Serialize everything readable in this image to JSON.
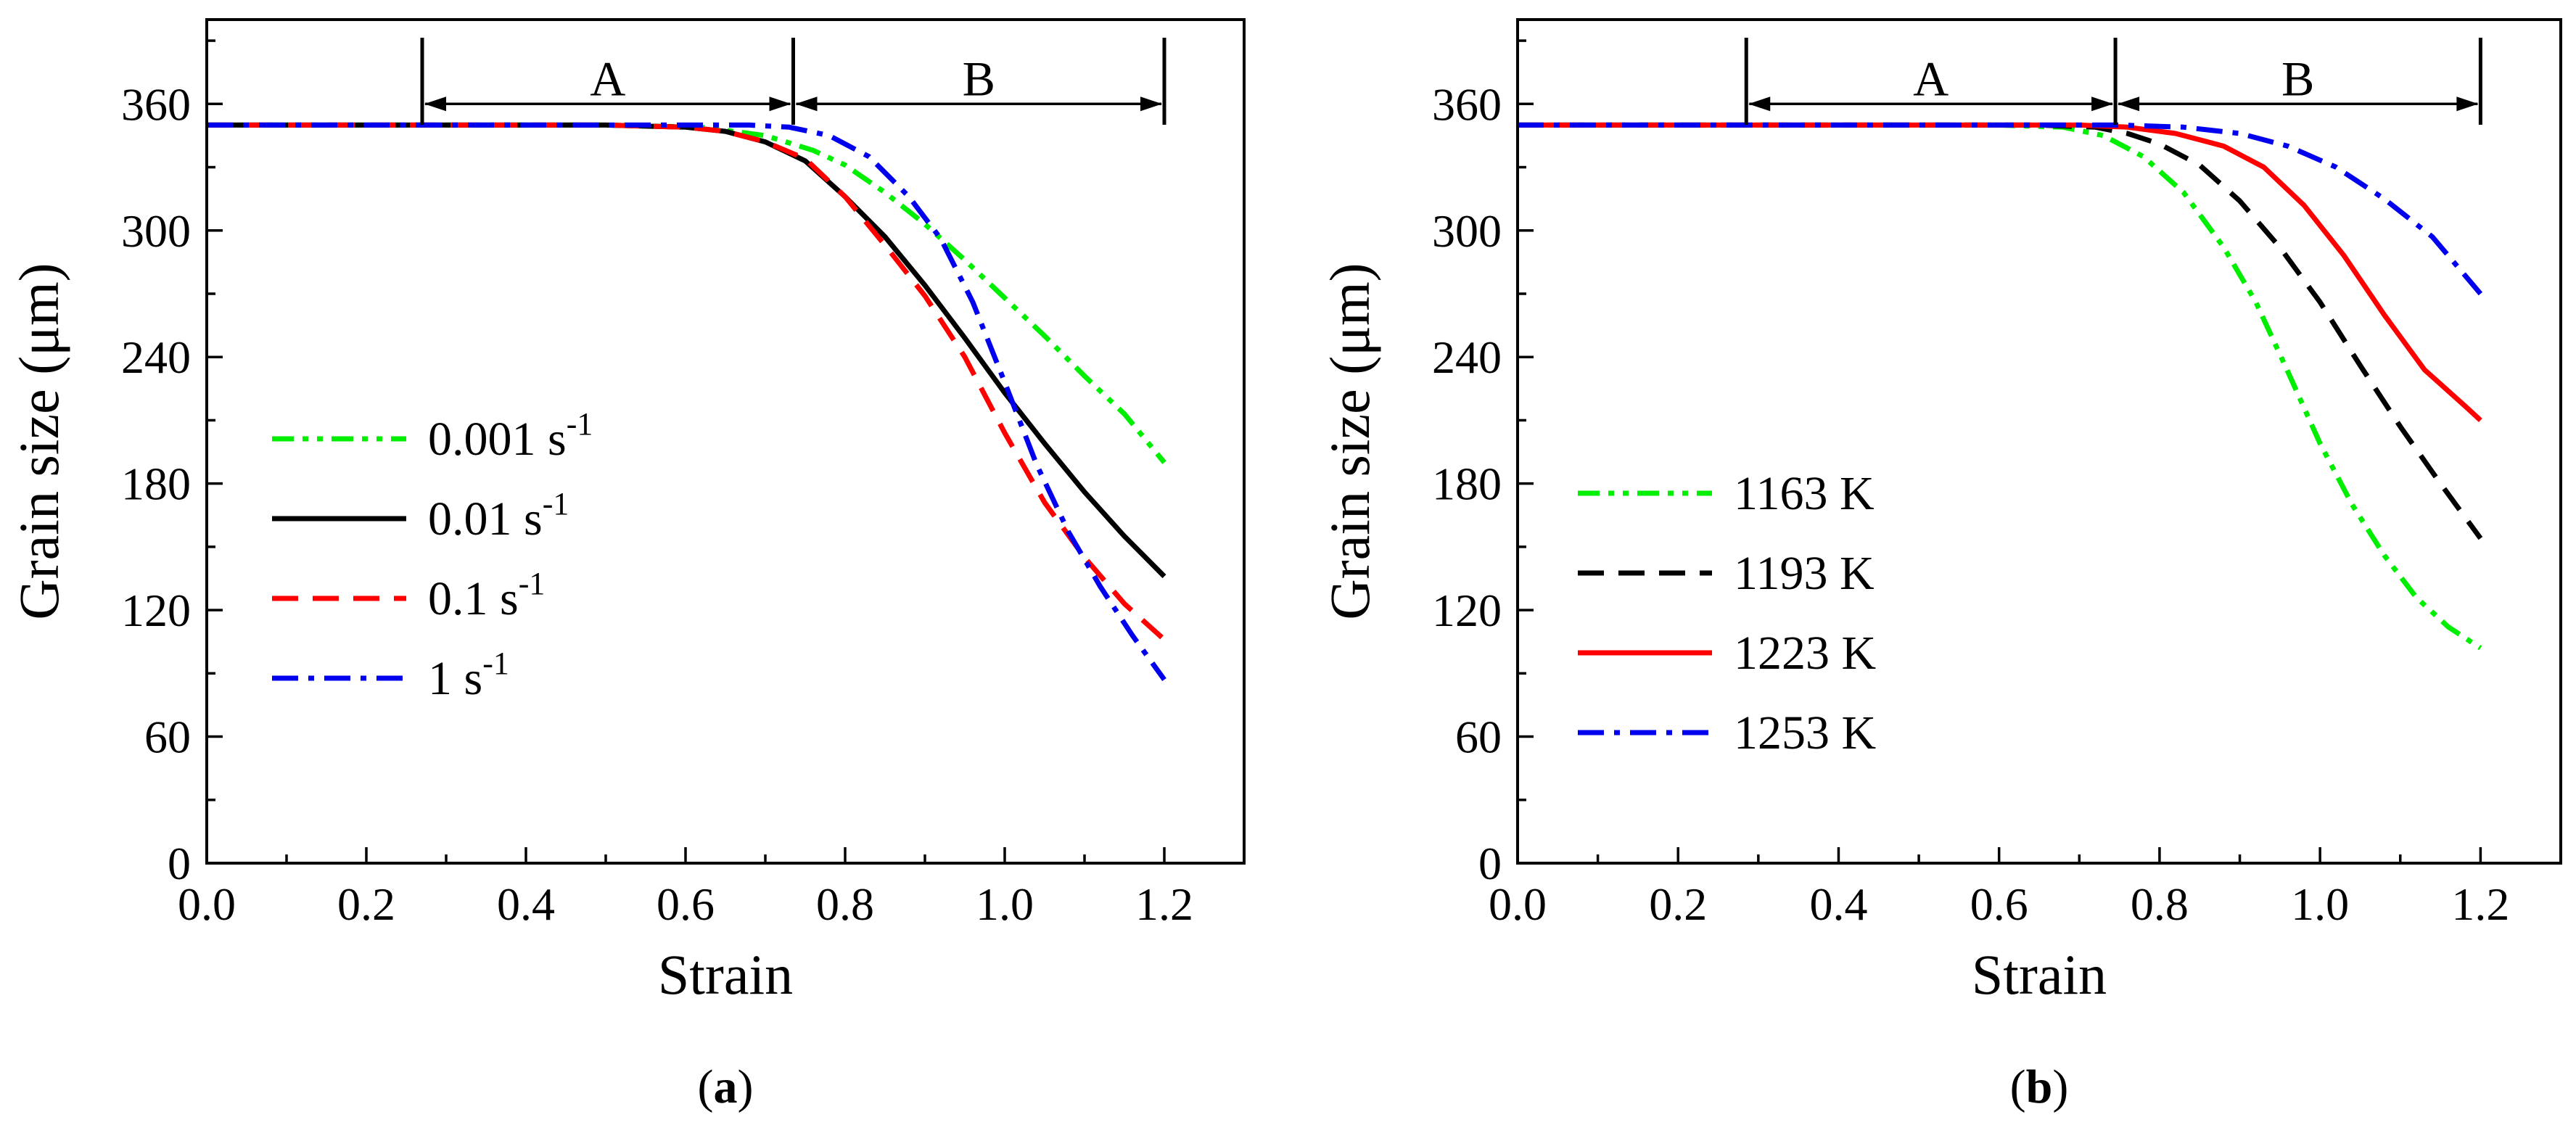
{
  "chart_data": [
    {
      "type": "line",
      "label": "(a)",
      "label_letter": "a",
      "xlabel": "Strain",
      "ylabel": "Grain size (μm)",
      "xlim": [
        0.0,
        1.3
      ],
      "ylim": [
        0,
        400
      ],
      "xticks": [
        0.0,
        0.2,
        0.4,
        0.6,
        0.8,
        1.0,
        1.2
      ],
      "xtick_labels": [
        "0.0",
        "0.2",
        "0.4",
        "0.6",
        "0.8",
        "1.0",
        "1.2"
      ],
      "yticks": [
        0,
        60,
        120,
        180,
        240,
        300,
        360
      ],
      "ytick_labels": [
        "0",
        "60",
        "120",
        "180",
        "240",
        "300",
        "360"
      ],
      "segments": [
        {
          "name": "A",
          "start": 0.27,
          "end": 0.735
        },
        {
          "name": "B",
          "start": 0.735,
          "end": 1.2
        }
      ],
      "legend_position": "center-left",
      "series": [
        {
          "name": "0.001 s",
          "sup": "-1",
          "color": "#00ee00",
          "dash": "dashdotdot",
          "x": [
            0.0,
            0.5,
            0.62,
            0.7,
            0.76,
            0.8,
            0.85,
            0.9,
            0.95,
            1.0,
            1.05,
            1.1,
            1.15,
            1.2
          ],
          "y": [
            350,
            350,
            349,
            345,
            338,
            331,
            318,
            303,
            286,
            268,
            250,
            231,
            213,
            190
          ]
        },
        {
          "name": "0.01 s",
          "sup": "-1",
          "color": "#000000",
          "dash": "solid",
          "x": [
            0.0,
            0.5,
            0.6,
            0.65,
            0.7,
            0.75,
            0.8,
            0.85,
            0.9,
            0.95,
            1.0,
            1.05,
            1.1,
            1.15,
            1.2
          ],
          "y": [
            350,
            350,
            349,
            347,
            342,
            333,
            316,
            297,
            274,
            249,
            223,
            199,
            176,
            155,
            136
          ]
        },
        {
          "name": "0.1 s",
          "sup": "-1",
          "color": "#ff0000",
          "dash": "dash",
          "x": [
            0.0,
            0.5,
            0.6,
            0.65,
            0.7,
            0.75,
            0.8,
            0.85,
            0.9,
            0.95,
            1.0,
            1.05,
            1.1,
            1.15,
            1.2
          ],
          "y": [
            350,
            350,
            349,
            347,
            342,
            334,
            316,
            293,
            269,
            240,
            204,
            171,
            145,
            123,
            106
          ]
        },
        {
          "name": "1 s",
          "sup": "-1",
          "color": "#0000ee",
          "dash": "dashdot",
          "x": [
            0.0,
            0.6,
            0.68,
            0.73,
            0.78,
            0.83,
            0.88,
            0.92,
            0.96,
            1.0,
            1.04,
            1.08,
            1.12,
            1.16,
            1.2
          ],
          "y": [
            350,
            350,
            350,
            349,
            345,
            335,
            316,
            296,
            266,
            228,
            189,
            157,
            131,
            108,
            87
          ]
        }
      ]
    },
    {
      "type": "line",
      "label": "(b)",
      "label_letter": "b",
      "xlabel": "Strain",
      "ylabel": "Grain size (μm)",
      "xlim": [
        0.0,
        1.3
      ],
      "ylim": [
        0,
        400
      ],
      "xticks": [
        0.0,
        0.2,
        0.4,
        0.6,
        0.8,
        1.0,
        1.2
      ],
      "xtick_labels": [
        "0.0",
        "0.2",
        "0.4",
        "0.6",
        "0.8",
        "1.0",
        "1.2"
      ],
      "yticks": [
        0,
        60,
        120,
        180,
        240,
        300,
        360
      ],
      "ytick_labels": [
        "0",
        "60",
        "120",
        "180",
        "240",
        "300",
        "360"
      ],
      "segments": [
        {
          "name": "A",
          "start": 0.285,
          "end": 0.745
        },
        {
          "name": "B",
          "start": 0.745,
          "end": 1.2
        }
      ],
      "legend_position": "center-left",
      "series": [
        {
          "name": "1163 K",
          "color": "#00ee00",
          "dash": "dashdotdot",
          "x": [
            0.0,
            0.6,
            0.68,
            0.73,
            0.78,
            0.83,
            0.88,
            0.92,
            0.96,
            1.0,
            1.04,
            1.08,
            1.12,
            1.16,
            1.2
          ],
          "y": [
            350,
            350,
            349,
            345,
            335,
            318,
            292,
            266,
            233,
            199,
            170,
            146,
            126,
            112,
            102
          ]
        },
        {
          "name": "1193 K",
          "color": "#000000",
          "dash": "dash",
          "x": [
            0.0,
            0.65,
            0.72,
            0.76,
            0.8,
            0.85,
            0.9,
            0.95,
            1.0,
            1.05,
            1.1,
            1.15,
            1.2
          ],
          "y": [
            350,
            350,
            349,
            346,
            341,
            331,
            314,
            292,
            266,
            236,
            207,
            180,
            154
          ]
        },
        {
          "name": "1223 K",
          "color": "#ff0000",
          "dash": "solid",
          "x": [
            0.0,
            0.7,
            0.76,
            0.82,
            0.88,
            0.93,
            0.98,
            1.03,
            1.08,
            1.13,
            1.18,
            1.2
          ],
          "y": [
            350,
            350,
            349,
            346,
            340,
            330,
            312,
            288,
            260,
            234,
            217,
            210
          ]
        },
        {
          "name": "1253 K",
          "color": "#0000ee",
          "dash": "dashdot",
          "x": [
            0.0,
            0.75,
            0.83,
            0.9,
            0.96,
            1.02,
            1.08,
            1.14,
            1.2
          ],
          "y": [
            350,
            350,
            349,
            346,
            340,
            330,
            315,
            297,
            270
          ]
        }
      ]
    }
  ]
}
